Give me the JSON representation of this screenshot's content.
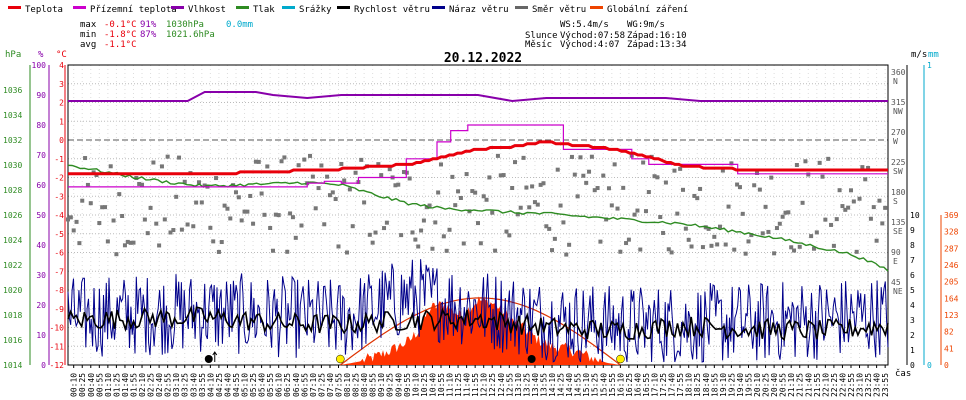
{
  "chart_data": {
    "type": "line",
    "title": "20.12.2022",
    "legend": [
      {
        "name": "Teplota",
        "color": "#e8000b"
      },
      {
        "name": "Přízemní teplota",
        "color": "#cc00cc"
      },
      {
        "name": "Vlhkost",
        "color": "#8800aa"
      },
      {
        "name": "Tlak",
        "color": "#2e8b22"
      },
      {
        "name": "Srážky",
        "color": "#00aacc"
      },
      {
        "name": "Rychlost větru",
        "color": "#000000"
      },
      {
        "name": "Náraz větru",
        "color": "#00008b"
      },
      {
        "name": "Směr větru",
        "color": "#666666"
      },
      {
        "name": "Globální záření",
        "color": "#ee4400"
      }
    ],
    "stats": {
      "max": {
        "label": "max",
        "temp": "-0.1°C",
        "hum": "91%",
        "press": "1030hPa",
        "rain": "0.0mm"
      },
      "min": {
        "label": "min",
        "temp": "-1.8°C",
        "hum": "87%",
        "press": "1021.6hPa"
      },
      "avg": {
        "label": "avg",
        "temp": "-1.1°C"
      }
    },
    "info": {
      "ws": "WS:5.4m/s",
      "wg": "WG:9m/s",
      "sun_label": "Slunce",
      "sun_rise": "Východ:07:58",
      "sun_set": "Západ:16:10",
      "moon_label": "Měsíc",
      "moon_rise": "Východ:4:07",
      "moon_set": "Západ:13:34"
    },
    "axes": {
      "pressure": {
        "unit": "hPa",
        "range": [
          1014,
          1038
        ],
        "ticks": [
          1014,
          1016,
          1018,
          1020,
          1022,
          1024,
          1026,
          1028,
          1030,
          1032,
          1034,
          1036
        ]
      },
      "humidity": {
        "unit": "%",
        "range": [
          0,
          100
        ],
        "ticks": [
          0,
          10,
          20,
          30,
          40,
          50,
          60,
          70,
          80,
          90,
          100
        ]
      },
      "temperature": {
        "unit": "°C",
        "range": [
          -12,
          4
        ],
        "ticks": [
          4,
          3,
          2,
          1,
          0,
          -1,
          -2,
          -3,
          -4,
          -5,
          -6,
          -7,
          -8,
          -9,
          -10,
          -11,
          -12
        ]
      },
      "wind_dir": {
        "range": [
          0,
          360
        ],
        "ticks": [
          "360 N",
          "315 NW",
          "270 W",
          "225 SW",
          "180 S",
          "135 SE",
          "90 E",
          "45 NE"
        ]
      },
      "wind_speed": {
        "unit": "m/s",
        "range": [
          0,
          10
        ],
        "ticks": [
          10,
          9,
          8,
          7,
          6,
          5,
          4,
          3,
          2,
          1,
          0
        ]
      },
      "rain": {
        "unit": "mm",
        "range": [
          0,
          1
        ],
        "ticks": [
          1,
          0
        ]
      },
      "radiation": {
        "range": [
          0,
          369
        ],
        "ticks": [
          369,
          328,
          287,
          246,
          205,
          164,
          123,
          82,
          41,
          0
        ]
      },
      "x_label": "čas"
    },
    "x_ticks": [
      "00:10",
      "00:25",
      "00:40",
      "00:55",
      "01:10",
      "01:25",
      "01:40",
      "01:55",
      "02:10",
      "02:25",
      "02:40",
      "02:55",
      "03:10",
      "03:25",
      "03:40",
      "03:55",
      "04:10",
      "04:25",
      "04:40",
      "04:55",
      "05:10",
      "05:25",
      "05:40",
      "05:55",
      "06:10",
      "06:25",
      "06:40",
      "06:55",
      "07:10",
      "07:25",
      "07:40",
      "07:55",
      "08:10",
      "08:25",
      "08:40",
      "08:55",
      "09:10",
      "09:25",
      "09:40",
      "09:55",
      "10:10",
      "10:25",
      "10:40",
      "10:55",
      "11:10",
      "11:25",
      "11:40",
      "11:55",
      "12:10",
      "12:25",
      "12:40",
      "12:55",
      "13:10",
      "13:25",
      "13:40",
      "13:55",
      "14:10",
      "14:25",
      "14:40",
      "14:55",
      "15:10",
      "15:25",
      "15:40",
      "15:55",
      "16:10",
      "16:25",
      "16:40",
      "16:55",
      "17:10",
      "17:25",
      "17:40",
      "17:55",
      "18:10",
      "18:25",
      "18:40",
      "18:55",
      "19:10",
      "19:25",
      "19:40",
      "19:55",
      "20:10",
      "20:25",
      "20:40",
      "20:55",
      "21:10",
      "21:25",
      "21:40",
      "21:55",
      "22:10",
      "22:25",
      "22:40",
      "22:55",
      "23:10",
      "23:25",
      "23:40",
      "23:55"
    ],
    "series_data": {
      "temperature": {
        "t": [
          0,
          3,
          4,
          6,
          7,
          8,
          9,
          10,
          11,
          12,
          13,
          14,
          15,
          16,
          17,
          18,
          20,
          22,
          23,
          24
        ],
        "v": [
          -1.8,
          -1.8,
          -1.8,
          -1.7,
          -1.6,
          -1.55,
          -1.4,
          -1.3,
          -0.9,
          -0.5,
          -0.35,
          -0.1,
          -0.3,
          -0.5,
          -0.9,
          -1.4,
          -1.6,
          -1.6,
          -1.6,
          -1.6
        ]
      },
      "ground_temperature": {
        "t": [
          0,
          2.5,
          6.4,
          7.0,
          7.5,
          8.0,
          8.5,
          9.9,
          10.3,
          10.8,
          11.2,
          11.7,
          13.6,
          14.5,
          15.0,
          16.5,
          17.0,
          19.0,
          19.6,
          24
        ],
        "v": [
          -2.5,
          -2.5,
          -2.5,
          -2.3,
          -2.2,
          -2.3,
          -2.0,
          -1.0,
          -1.0,
          -0.1,
          0.5,
          0.8,
          0.8,
          -0.5,
          -0.5,
          -1.0,
          -1.3,
          -1.3,
          -1.8,
          -1.8
        ]
      },
      "humidity": {
        "t": [
          0,
          3.5,
          4.0,
          5.5,
          6.0,
          7.0,
          8.0,
          12.0,
          13.0,
          14.0,
          17.5,
          18.5,
          24
        ],
        "v": [
          88,
          88,
          91,
          91,
          90,
          89,
          90,
          90,
          88,
          89,
          89,
          88,
          88
        ]
      },
      "pressure": {
        "t": [
          0,
          1,
          2,
          3,
          4,
          5,
          6,
          7,
          8,
          9,
          10,
          11,
          12,
          13,
          14,
          15,
          16,
          17,
          18,
          19,
          20,
          21,
          22,
          23,
          24
        ],
        "v": [
          1030.0,
          1029.5,
          1029.0,
          1028.6,
          1028.3,
          1028.4,
          1028.5,
          1028.6,
          1028.4,
          1027.6,
          1026.9,
          1026.5,
          1026.4,
          1026.2,
          1026.1,
          1025.9,
          1025.7,
          1025.5,
          1025.3,
          1024.9,
          1024.5,
          1024.0,
          1023.4,
          1022.8,
          1021.6
        ]
      },
      "wind_mean": {
        "t": [
          0,
          2,
          4,
          6,
          8,
          10,
          12,
          14,
          16,
          18,
          20,
          22,
          24
        ],
        "v": [
          3.0,
          3.1,
          3.2,
          2.8,
          2.7,
          3.0,
          3.1,
          2.5,
          2.3,
          2.6,
          2.4,
          2.3,
          2.6
        ]
      },
      "wind_gust_mean": {
        "t": [
          0,
          4,
          8,
          10,
          12,
          14,
          16,
          20,
          24
        ],
        "v": [
          3.2,
          3.5,
          3.0,
          4.6,
          3.8,
          3.0,
          2.6,
          2.8,
          3.3
        ]
      },
      "radiation": {
        "t": [
          7.97,
          8.5,
          9.0,
          9.5,
          10.0,
          10.3,
          10.6,
          11.0,
          11.5,
          12.0,
          12.5,
          13.0,
          13.4,
          13.8,
          14.2,
          14.6,
          15.0,
          15.4,
          15.8,
          16.17
        ],
        "v": [
          0,
          8,
          20,
          38,
          60,
          90,
          140,
          150,
          120,
          160,
          150,
          110,
          85,
          60,
          45,
          40,
          30,
          15,
          5,
          0
        ]
      },
      "wind_dir_points": 288
    },
    "markers": {
      "sunrise_h": 7.97,
      "sunset_h": 16.17,
      "moonrise_h": 4.12,
      "moonset_h": 13.57
    }
  }
}
